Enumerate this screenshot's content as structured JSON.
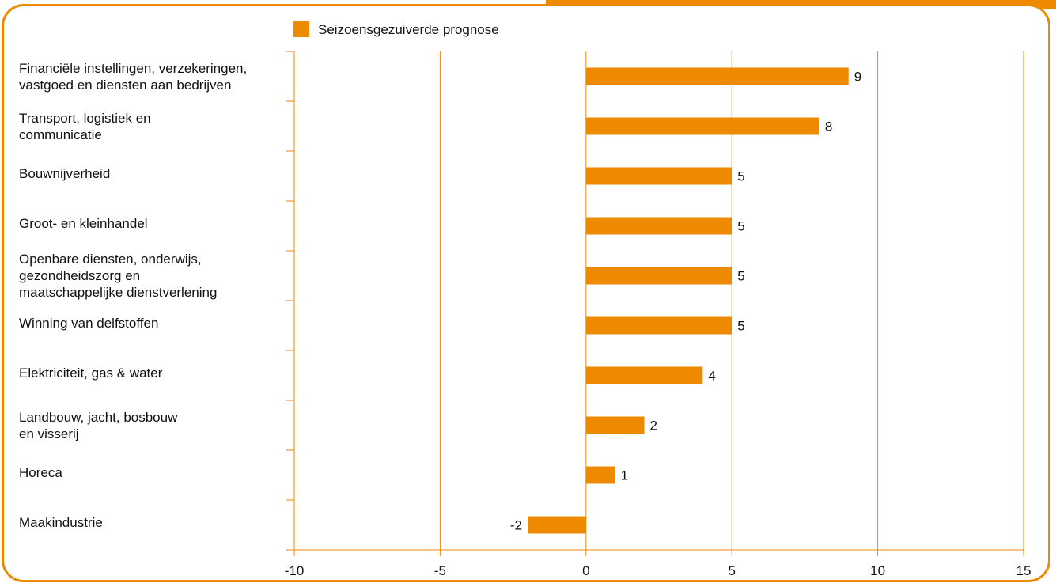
{
  "colors": {
    "accent": "#ee8a00",
    "text": "#111111"
  },
  "legend": {
    "label": "Seizoensgezuiverde prognose"
  },
  "chart_data": {
    "type": "bar",
    "orientation": "horizontal",
    "categories": [
      [
        "Financiële instellingen, verzekeringen,",
        "vastgoed en diensten aan bedrijven"
      ],
      [
        "Transport, logistiek en",
        "communicatie"
      ],
      [
        "Bouwnijverheid"
      ],
      [
        "Groot- en kleinhandel"
      ],
      [
        "Openbare diensten, onderwijs,",
        "gezondheidszorg en",
        "maatschappelijke dienstverlening"
      ],
      [
        "Winning van delfstoffen"
      ],
      [
        "Elektriciteit, gas & water"
      ],
      [
        "Landbouw, jacht, bosbouw",
        "en visserij"
      ],
      [
        "Horeca"
      ],
      [
        "Maakindustrie"
      ]
    ],
    "series": [
      {
        "name": "Seizoensgezuiverde prognose",
        "values": [
          9,
          8,
          5,
          5,
          5,
          5,
          4,
          2,
          1,
          -2
        ],
        "labels": [
          "9",
          "8",
          "5",
          "5",
          "5",
          "5",
          "4",
          "2",
          "1",
          "-2"
        ]
      }
    ],
    "xlim": [
      -10,
      15
    ],
    "xticks": [
      "-10",
      "-5",
      "0",
      "5",
      "10",
      "15"
    ],
    "xtick_values": [
      -10,
      -5,
      0,
      5,
      10,
      15
    ],
    "grid": true,
    "legend_position": "top"
  }
}
